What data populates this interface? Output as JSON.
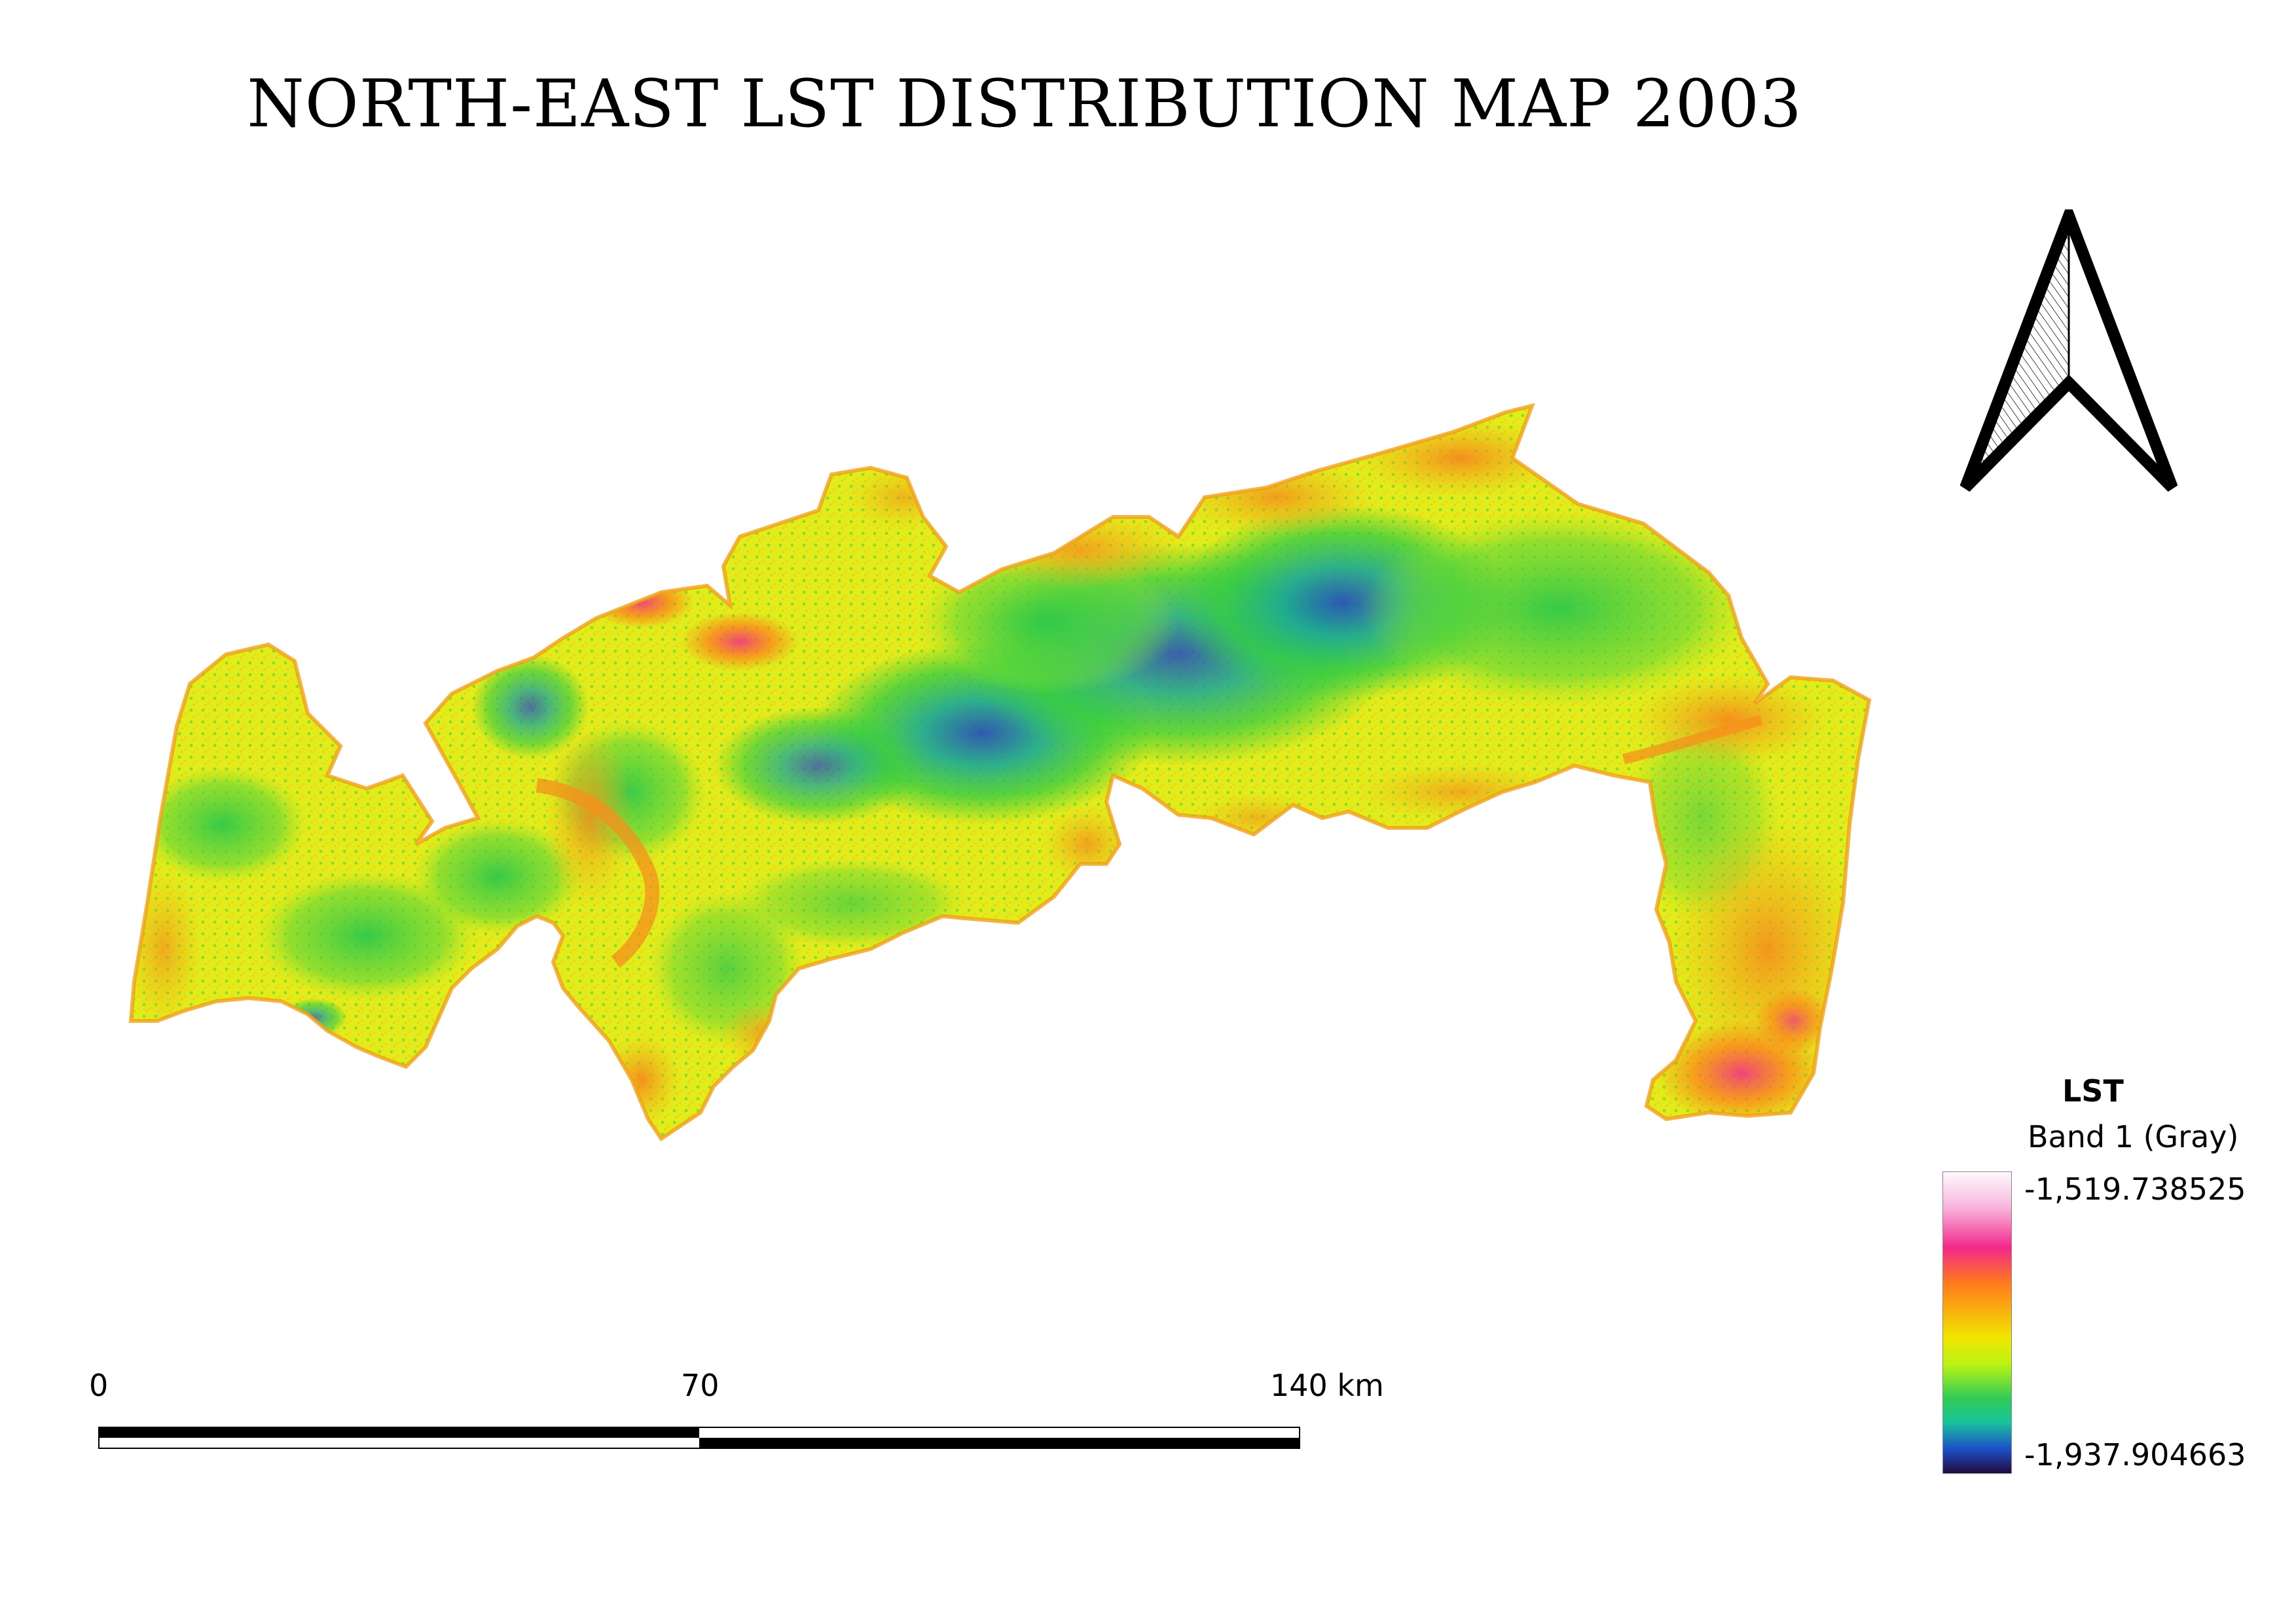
{
  "map": {
    "title": "NORTH-EAST LST DISTRIBUTION MAP 2003",
    "colors": {
      "background": "#ffffff",
      "warm_edge": "#f58a1c",
      "base_yellow": "#e6ee18",
      "mid_green": "#33cc44",
      "cool_teal": "#1aa898",
      "cold_blue": "#1d4bc0",
      "hot_pink": "#f2288a"
    }
  },
  "north_arrow": {
    "icon": "north-arrow-icon"
  },
  "scale_bar": {
    "labels": [
      "0",
      "70",
      "140 km"
    ]
  },
  "legend": {
    "title": "LST",
    "subtitle": "Band 1 (Gray)",
    "max_label": "-1,519.738525",
    "min_label": "-1,937.904663",
    "ramp_colors": [
      "#fdfafd",
      "#f8b3dc",
      "#f2288a",
      "#ff7b1c",
      "#f2e600",
      "#b9f214",
      "#33cc55",
      "#18c49a",
      "#1e4fc8",
      "#220a40"
    ]
  }
}
